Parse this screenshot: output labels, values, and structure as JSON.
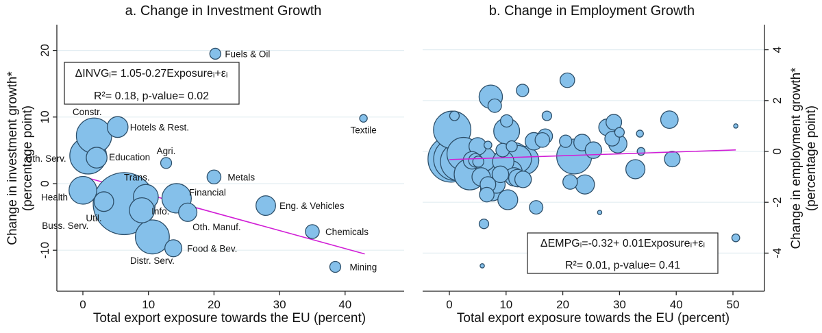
{
  "chart_data": [
    {
      "type": "scatter",
      "title": "a. Change in Investment Growth",
      "xlabel": "Total export exposure towards the EU (percent)",
      "ylabel": "Change in investment growth*",
      "ylabel2": "(percentage point)",
      "xlim": [
        -4,
        46
      ],
      "ylim": [
        -16,
        24
      ],
      "xticks": [
        "0",
        "10",
        "20",
        "30",
        "40"
      ],
      "xtick_values": [
        0,
        10,
        20,
        30,
        40
      ],
      "yticks": [
        "20",
        "10",
        "0",
        "-10"
      ],
      "ytick_values": [
        20,
        10,
        0,
        -10
      ],
      "grid": true,
      "yaxis_side": "left",
      "annotation": {
        "line1": "ΔINVGᵢ= 1.05-0.27Exposureᵢ+εᵢ",
        "line2": "R²= 0.18,  p-value= 0.02"
      },
      "fit": {
        "intercept": 1.05,
        "slope": -0.27,
        "x_range": [
          0,
          43
        ]
      },
      "points": [
        {
          "label": "Fuels & Oil",
          "x": 20.2,
          "y": 19.5,
          "size": 0.25
        },
        {
          "label": "Textile",
          "x": 42.8,
          "y": 9.8,
          "size": 0.12
        },
        {
          "label": "Constr.",
          "x": 1.7,
          "y": 7.2,
          "size": 2.6
        },
        {
          "label": "Hotels & Rest.",
          "x": 5.3,
          "y": 8.5,
          "size": 0.9
        },
        {
          "label": "Oth. Serv.",
          "x": 0.8,
          "y": 4.2,
          "size": 2.8
        },
        {
          "label": "Education",
          "x": 2.1,
          "y": 3.9,
          "size": 0.9
        },
        {
          "label": "Agri.",
          "x": 12.7,
          "y": 3.1,
          "size": 0.25
        },
        {
          "label": "Metals",
          "x": 20.0,
          "y": 1.0,
          "size": 0.4
        },
        {
          "label": "Health",
          "x": 0.0,
          "y": -1.0,
          "size": 1.6
        },
        {
          "label": "Util.",
          "x": 3.2,
          "y": -2.7,
          "size": 0.8
        },
        {
          "label": "Buss. Serv.",
          "x": 6.3,
          "y": -3.0,
          "size": 8.0
        },
        {
          "label": "Trans.",
          "x": 9.6,
          "y": -2.0,
          "size": 1.3
        },
        {
          "label": "Info.",
          "x": 9.0,
          "y": -4.0,
          "size": 1.3
        },
        {
          "label": "Financial",
          "x": 14.3,
          "y": -2.2,
          "size": 1.8
        },
        {
          "label": "Oth. Manuf.",
          "x": 16.0,
          "y": -4.3,
          "size": 0.7
        },
        {
          "label": "Eng. & Vehicles",
          "x": 27.9,
          "y": -3.3,
          "size": 0.8
        },
        {
          "label": "Chemicals",
          "x": 35.0,
          "y": -7.2,
          "size": 0.4
        },
        {
          "label": "Distr. Serv.",
          "x": 10.6,
          "y": -8.0,
          "size": 2.4
        },
        {
          "label": "Food & Bev.",
          "x": 13.8,
          "y": -9.7,
          "size": 0.6
        },
        {
          "label": "Mining",
          "x": 38.5,
          "y": -12.5,
          "size": 0.25
        }
      ]
    },
    {
      "type": "scatter",
      "title": "b. Change in Employment Growth",
      "xlabel": "Total export exposure towards the EU (percent)",
      "ylabel": "Change in employment growth*",
      "ylabel2": "(percentage point)",
      "xlim": [
        -4,
        56
      ],
      "ylim": [
        -5.5,
        5.0
      ],
      "xticks": [
        "0",
        "10",
        "20",
        "30",
        "40",
        "50"
      ],
      "xtick_values": [
        0,
        10,
        20,
        30,
        40,
        50
      ],
      "yticks": [
        "4",
        "2",
        "0",
        "-2",
        "-4"
      ],
      "ytick_values": [
        4,
        2,
        0,
        -2,
        -4
      ],
      "grid": true,
      "yaxis_side": "right",
      "annotation": {
        "line1": "ΔEMPGᵢ=-0.32+ 0.01Exposureᵢ+εᵢ",
        "line2": "R²= 0.01,  p-value= 0.41"
      },
      "fit": {
        "intercept": -0.32,
        "slope": 0.0075,
        "x_range": [
          0,
          50.5
        ]
      },
      "points": [
        {
          "x": 20.8,
          "y": 2.8,
          "size": 0.35
        },
        {
          "x": 12.9,
          "y": 2.4,
          "size": 0.25
        },
        {
          "x": 7.3,
          "y": 2.15,
          "size": 0.9
        },
        {
          "x": 8.0,
          "y": 1.8,
          "size": 0.3
        },
        {
          "x": 0.5,
          "y": 0.85,
          "size": 2.3
        },
        {
          "x": 0.9,
          "y": 1.4,
          "size": 0.15
        },
        {
          "x": 10.1,
          "y": 1.2,
          "size": 0.25
        },
        {
          "x": 10.1,
          "y": 0.8,
          "size": 1.1
        },
        {
          "x": 17.2,
          "y": 1.4,
          "size": 0.15
        },
        {
          "x": 27.8,
          "y": 0.95,
          "size": 0.45
        },
        {
          "x": 29.0,
          "y": 1.15,
          "size": 0.4
        },
        {
          "x": 30.0,
          "y": 0.75,
          "size": 0.15
        },
        {
          "x": 33.6,
          "y": 0.7,
          "size": 0.08
        },
        {
          "x": 38.8,
          "y": 1.25,
          "size": 0.5
        },
        {
          "x": 50.5,
          "y": 1.0,
          "size": 0.03
        },
        {
          "x": 16.9,
          "y": 0.6,
          "size": 0.35
        },
        {
          "x": 16.4,
          "y": 0.45,
          "size": 0.35
        },
        {
          "x": 14.9,
          "y": 0.4,
          "size": 0.5
        },
        {
          "x": 11.0,
          "y": 0.2,
          "size": 0.2
        },
        {
          "x": 6.8,
          "y": 0.25,
          "size": 0.1
        },
        {
          "x": 28.7,
          "y": 0.5,
          "size": 0.35
        },
        {
          "x": 29.7,
          "y": 0.3,
          "size": 0.55
        },
        {
          "x": 20.5,
          "y": 0.4,
          "size": 0.25
        },
        {
          "x": 23.4,
          "y": 0.35,
          "size": 0.45
        },
        {
          "x": 25.4,
          "y": 0.05,
          "size": 0.45
        },
        {
          "x": 33.8,
          "y": 0.0,
          "size": 0.1
        },
        {
          "x": 9.4,
          "y": 0.05,
          "size": 0.3
        },
        {
          "x": 5.0,
          "y": 0.2,
          "size": 0.5
        },
        {
          "x": 0.3,
          "y": -0.3,
          "size": 3.5
        },
        {
          "x": 1.0,
          "y": -0.3,
          "size": 3.0
        },
        {
          "x": 1.8,
          "y": -0.4,
          "size": 2.4
        },
        {
          "x": 2.5,
          "y": -0.1,
          "size": 1.8
        },
        {
          "x": 3.6,
          "y": -0.9,
          "size": 1.6
        },
        {
          "x": 4.0,
          "y": -0.35,
          "size": 0.5
        },
        {
          "x": 4.6,
          "y": -0.35,
          "size": 0.3
        },
        {
          "x": 5.1,
          "y": -0.4,
          "size": 0.2
        },
        {
          "x": 6.0,
          "y": -0.3,
          "size": 1.0
        },
        {
          "x": 5.6,
          "y": -1.0,
          "size": 0.55
        },
        {
          "x": 6.8,
          "y": -1.3,
          "size": 0.4
        },
        {
          "x": 7.7,
          "y": -0.65,
          "size": 1.4
        },
        {
          "x": 9.5,
          "y": -0.4,
          "size": 0.75
        },
        {
          "x": 11.3,
          "y": -0.3,
          "size": 1.8
        },
        {
          "x": 12.1,
          "y": -0.3,
          "size": 1.2
        },
        {
          "x": 13.3,
          "y": -0.35,
          "size": 1.3
        },
        {
          "x": 9.0,
          "y": -0.9,
          "size": 0.45
        },
        {
          "x": 10.9,
          "y": -0.8,
          "size": 0.8
        },
        {
          "x": 11.4,
          "y": -1.0,
          "size": 0.55
        },
        {
          "x": 12.0,
          "y": -1.05,
          "size": 0.5
        },
        {
          "x": 13.0,
          "y": -1.1,
          "size": 0.45
        },
        {
          "x": 7.5,
          "y": -1.5,
          "size": 0.85
        },
        {
          "x": 6.6,
          "y": -1.7,
          "size": 0.35
        },
        {
          "x": 8.3,
          "y": -1.3,
          "size": 0.5
        },
        {
          "x": 10.3,
          "y": -1.9,
          "size": 0.65
        },
        {
          "x": 22.0,
          "y": -0.2,
          "size": 2.0
        },
        {
          "x": 21.3,
          "y": -1.2,
          "size": 0.35
        },
        {
          "x": 23.9,
          "y": -1.3,
          "size": 0.6
        },
        {
          "x": 32.8,
          "y": -0.7,
          "size": 0.6
        },
        {
          "x": 39.3,
          "y": -0.3,
          "size": 0.4
        },
        {
          "x": 15.3,
          "y": -2.2,
          "size": 0.3
        },
        {
          "x": 26.5,
          "y": -2.4,
          "size": 0.03
        },
        {
          "x": 6.1,
          "y": -2.85,
          "size": 0.15
        },
        {
          "x": 50.5,
          "y": -3.4,
          "size": 0.1
        },
        {
          "x": 5.8,
          "y": -4.5,
          "size": 0.03
        }
      ]
    }
  ]
}
